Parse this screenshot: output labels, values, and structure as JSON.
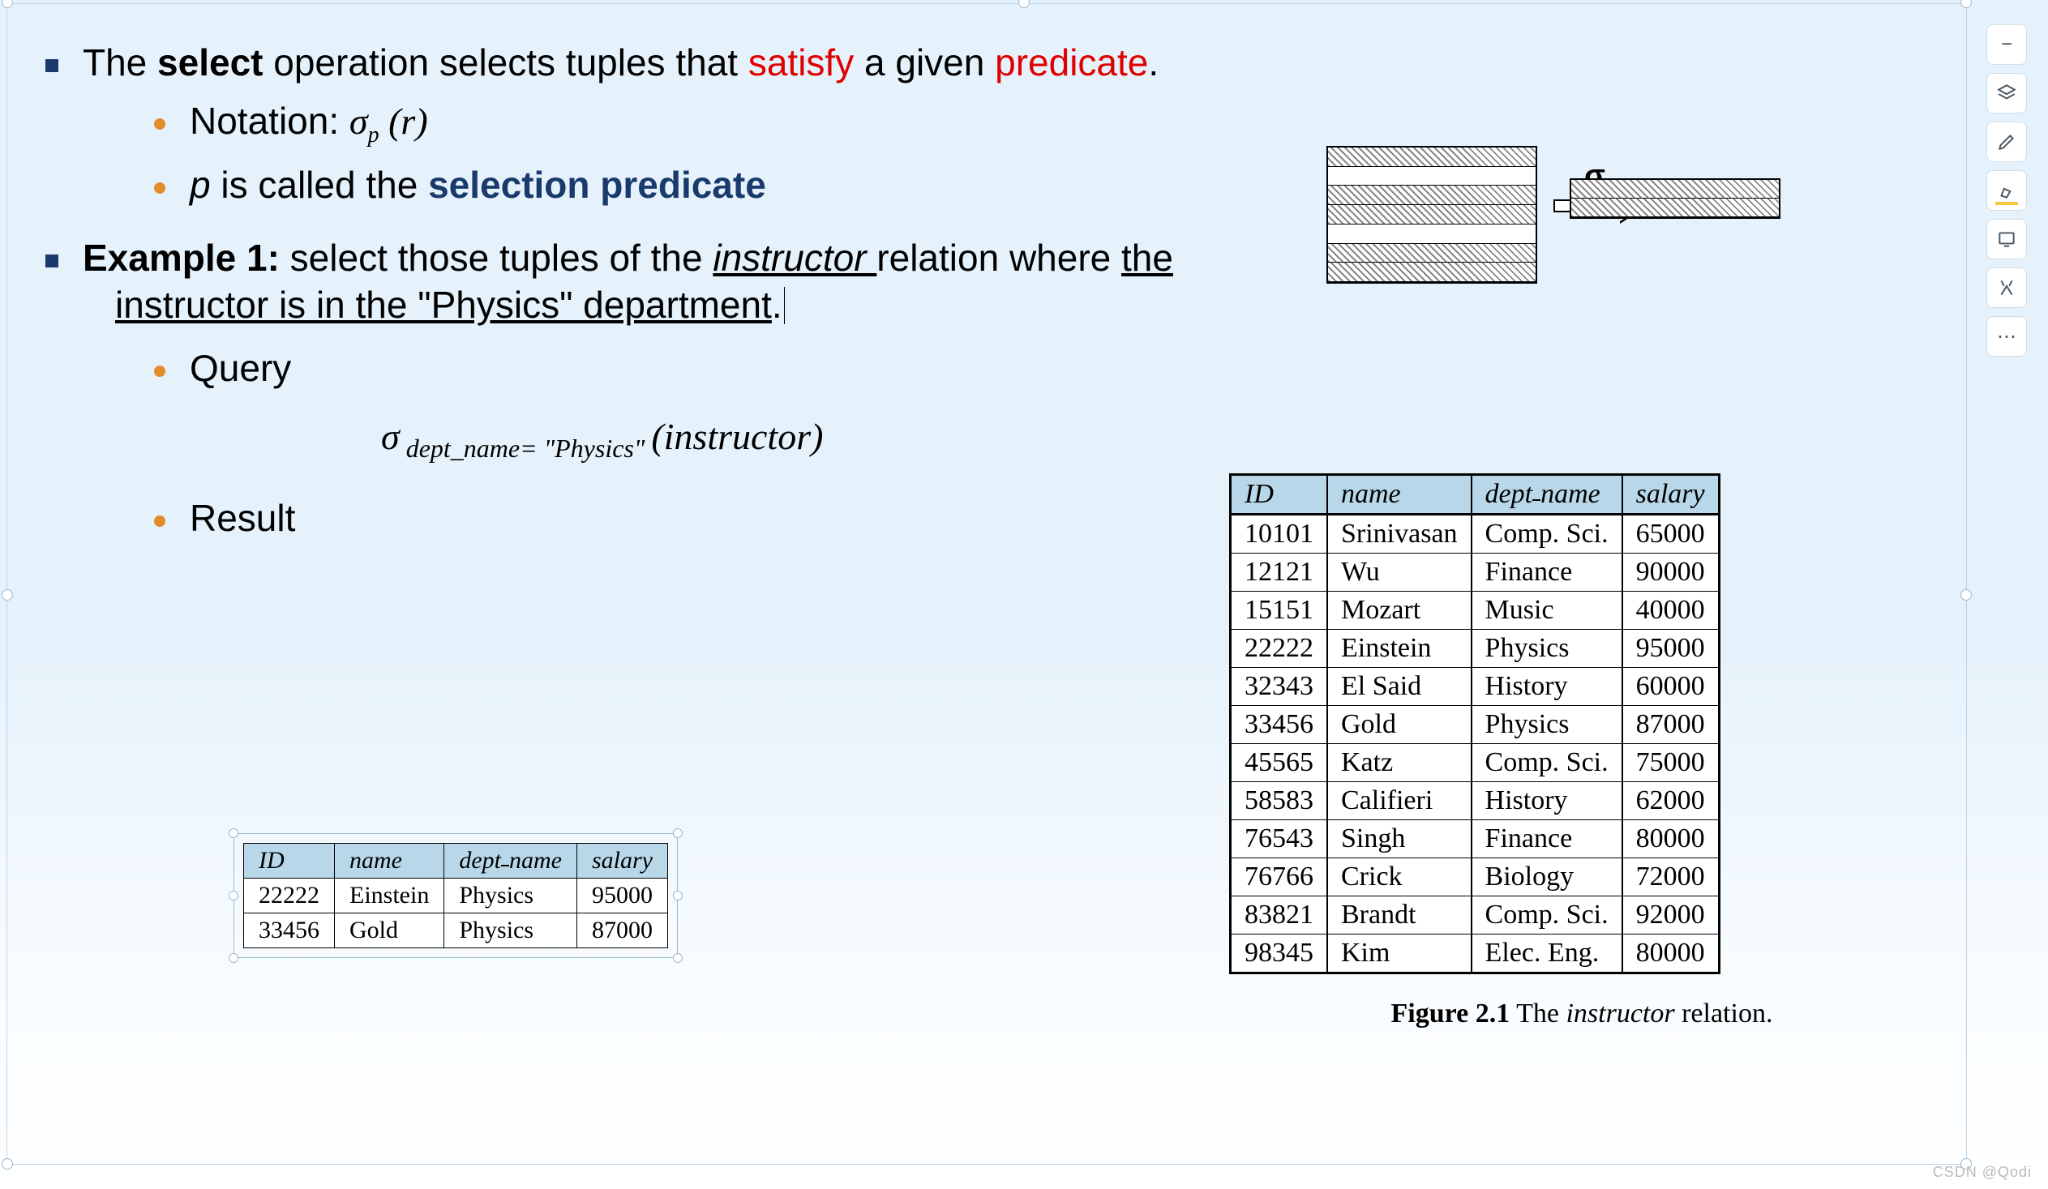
{
  "colors": {
    "bullet_square": "#1a3a6e",
    "bullet_dot": "#e38b2a",
    "emphasis_red": "#e00000",
    "emphasis_darkblue": "#1a3a6e",
    "table_header_bg": "#b8d8ea",
    "bg_top": "#e6f2fb",
    "bg_bottom": "#ffffff"
  },
  "typography": {
    "body_fontsize_pt": 34,
    "table_fontsize_pt": 25,
    "body_font": "Arial",
    "table_font": "Times New Roman"
  },
  "bullets": {
    "main1_pre": "The  ",
    "main1_select": "select",
    "main1_mid": " operation selects tuples that ",
    "main1_satisfy": "satisfy",
    "main1_mid2": " a given ",
    "main1_predicate": "predicate",
    "main1_post": ".",
    "sub1_label": "Notation:  ",
    "sub1_sigma": "σ",
    "sub1_sub": "p",
    "sub1_paren_l": " (",
    "sub1_r": "r",
    "sub1_paren_r": ")",
    "sub2_p": "p",
    "sub2_text": " is called the ",
    "sub2_bold": "selection predicate",
    "main2_bold": "Example 1:",
    "main2_a": " select those tuples of the ",
    "main2_instr": "instructor ",
    "main2_b": " relation where ",
    "main2_the": "the",
    "main2_line2": "instructor is in the \"Physics\" department",
    "main2_period": ".",
    "query_label": "Query",
    "query_sigma": "σ",
    "query_sub": " dept_name= \"Physics\" ",
    "query_paren_l": "(",
    "query_r": "instructor",
    "query_paren_r": ")",
    "result_label": "Result"
  },
  "diagram": {
    "arrow_label": "σ",
    "left_box": {
      "rows": 7,
      "highlighted_rows_zero_indexed": [
        0,
        2,
        3,
        5,
        6
      ]
    },
    "right_box": {
      "rows": 2,
      "highlighted_rows_zero_indexed": [
        0,
        1
      ]
    }
  },
  "instructor_table": {
    "columns": [
      "ID",
      "name",
      "dept_name",
      "salary"
    ],
    "column_header_join_dept": "dept_name",
    "rows": [
      [
        "10101",
        "Srinivasan",
        "Comp. Sci.",
        "65000"
      ],
      [
        "12121",
        "Wu",
        "Finance",
        "90000"
      ],
      [
        "15151",
        "Mozart",
        "Music",
        "40000"
      ],
      [
        "22222",
        "Einstein",
        "Physics",
        "95000"
      ],
      [
        "32343",
        "El Said",
        "History",
        "60000"
      ],
      [
        "33456",
        "Gold",
        "Physics",
        "87000"
      ],
      [
        "45565",
        "Katz",
        "Comp. Sci.",
        "75000"
      ],
      [
        "58583",
        "Califieri",
        "History",
        "62000"
      ],
      [
        "76543",
        "Singh",
        "Finance",
        "80000"
      ],
      [
        "76766",
        "Crick",
        "Biology",
        "72000"
      ],
      [
        "83821",
        "Brandt",
        "Comp. Sci.",
        "92000"
      ],
      [
        "98345",
        "Kim",
        "Elec. Eng.",
        "80000"
      ]
    ],
    "caption_bold": "Figure 2.1",
    "caption_mid": "   The ",
    "caption_it": "instructor",
    "caption_end": " relation."
  },
  "result_table": {
    "columns": [
      "ID",
      "name",
      "dept_name",
      "salary"
    ],
    "rows": [
      [
        "22222",
        "Einstein",
        "Physics",
        "95000"
      ],
      [
        "33456",
        "Gold",
        "Physics",
        "87000"
      ]
    ]
  },
  "toolbar": {
    "items": [
      {
        "name": "zoom-out-icon"
      },
      {
        "name": "layers-icon"
      },
      {
        "name": "pen-icon"
      },
      {
        "name": "highlight-icon"
      },
      {
        "name": "screen-icon"
      },
      {
        "name": "tools-icon"
      },
      {
        "name": "more-icon"
      }
    ]
  },
  "watermark": "CSDN @Qodi"
}
